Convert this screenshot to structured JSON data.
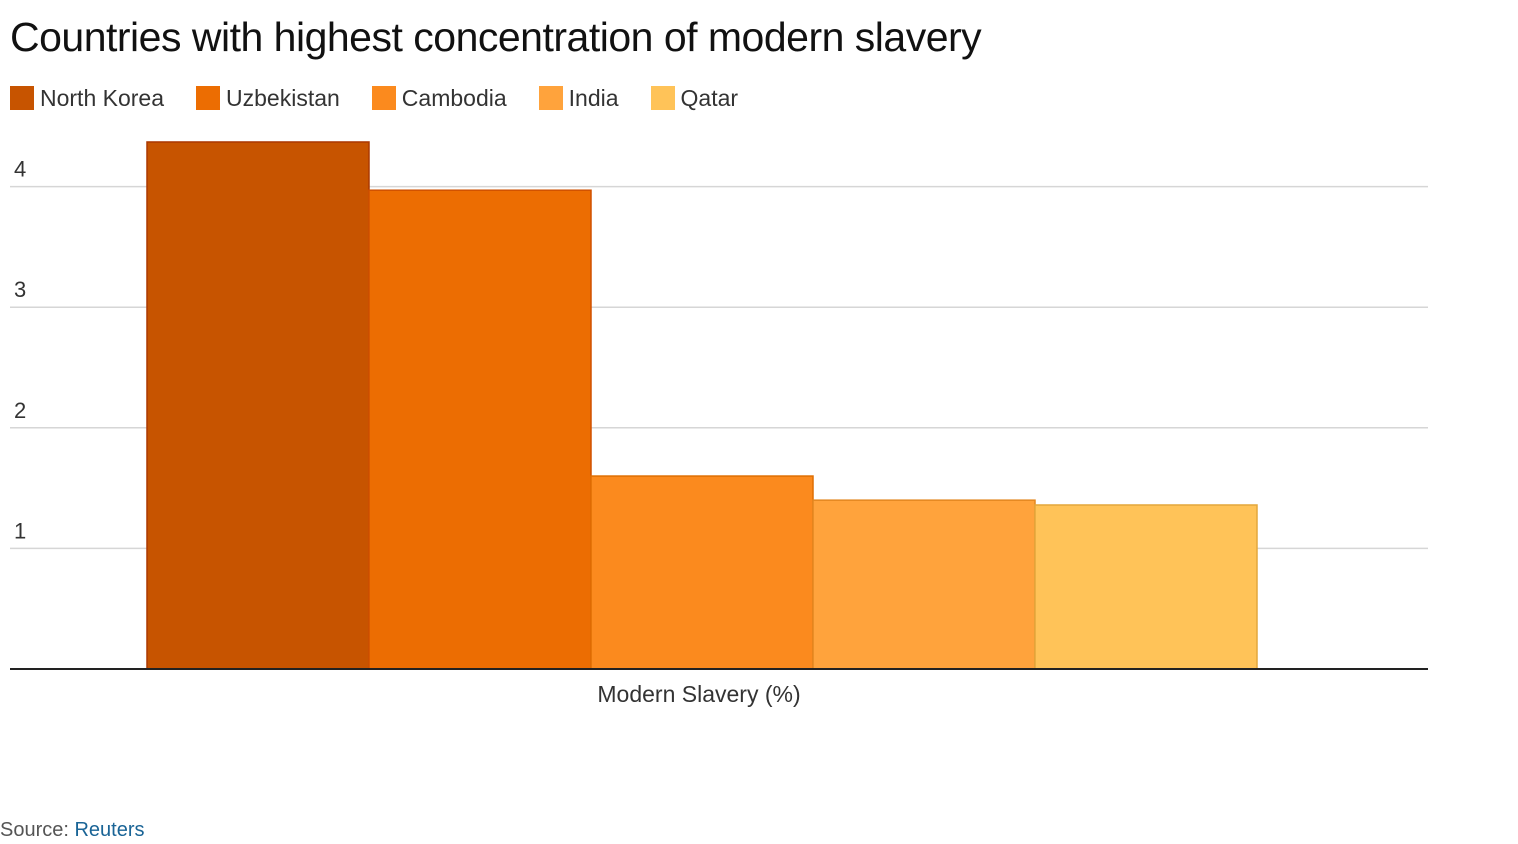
{
  "chart_data": {
    "type": "bar",
    "title": "Countries with highest concentration of modern slavery",
    "xlabel": "Modern Slavery (%)",
    "ylabel": "",
    "categories": [
      "Modern Slavery (%)"
    ],
    "series": [
      {
        "name": "North Korea",
        "values": [
          4.37
        ],
        "color": "#c75400"
      },
      {
        "name": "Uzbekistan",
        "values": [
          3.97
        ],
        "color": "#ec6d02"
      },
      {
        "name": "Cambodia",
        "values": [
          1.6
        ],
        "color": "#fb8a1e"
      },
      {
        "name": "India",
        "values": [
          1.4
        ],
        "color": "#ffa33c"
      },
      {
        "name": "Qatar",
        "values": [
          1.36
        ],
        "color": "#ffc358"
      }
    ],
    "yticks": [
      "1",
      "2",
      "3",
      "4"
    ],
    "ylim": [
      0,
      4.4
    ],
    "grid": true,
    "legend_position": "top-left"
  },
  "source": {
    "label": "Source: ",
    "name": "Reuters"
  }
}
